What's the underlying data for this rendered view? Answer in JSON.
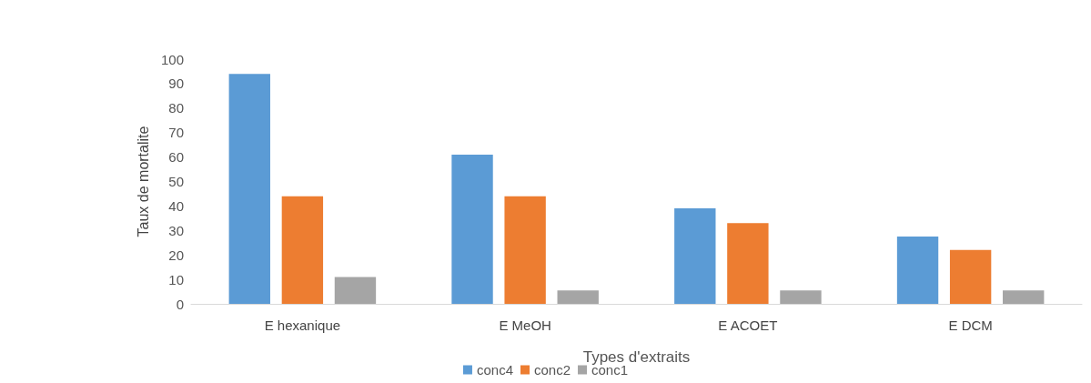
{
  "chart_data": {
    "type": "bar",
    "xlabel": "Types d'extraits",
    "ylabel": "Taux de mortalite",
    "categories": [
      "E hexanique",
      "E MeOH",
      "E ACOET",
      "E DCM"
    ],
    "series": [
      {
        "name": "conc4",
        "color": "#5b9bd5",
        "values": [
          94,
          61,
          39,
          27.5
        ]
      },
      {
        "name": "conc2",
        "color": "#ed7d31",
        "values": [
          44,
          44,
          33,
          22
        ]
      },
      {
        "name": "conc1",
        "color": "#a5a5a5",
        "values": [
          11,
          5.5,
          5.5,
          5.5
        ]
      }
    ],
    "ylim": [
      0,
      100
    ],
    "yticks": [
      0,
      10,
      20,
      30,
      40,
      50,
      60,
      70,
      80,
      90,
      100
    ],
    "grid": false,
    "legend": "bottom"
  }
}
